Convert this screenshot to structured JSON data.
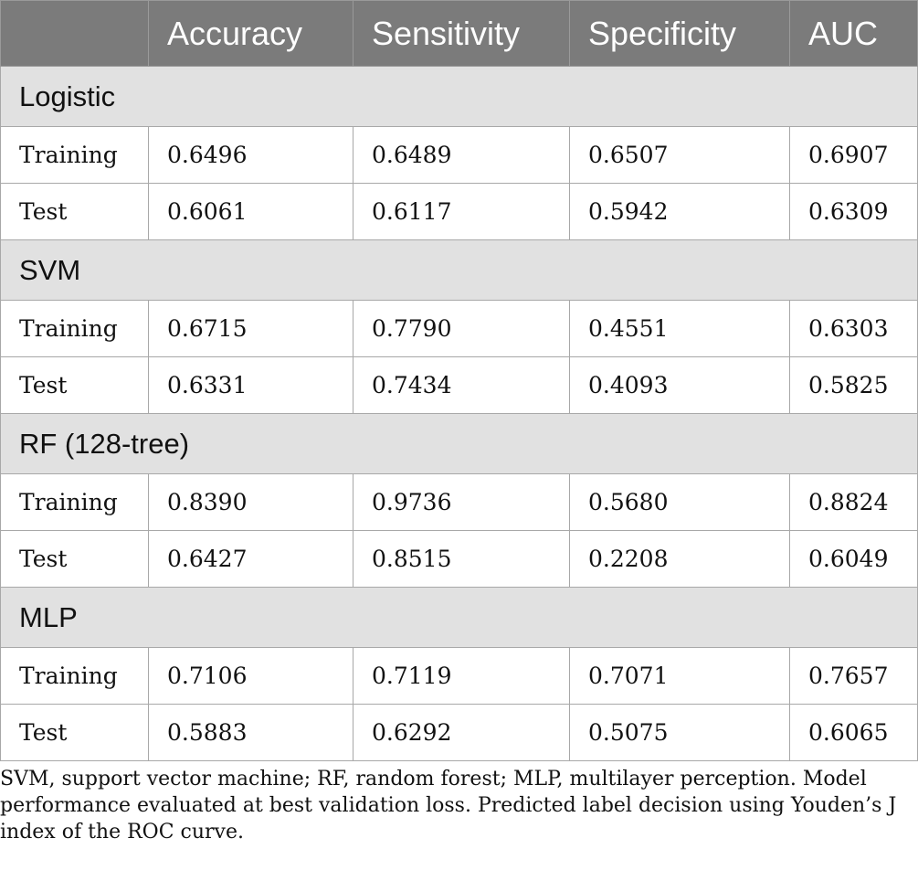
{
  "table": {
    "headers": [
      "",
      "Accuracy",
      "Sensitivity",
      "Specificity",
      "AUC"
    ],
    "groups": [
      {
        "name": "Logistic",
        "rows": [
          {
            "label": "Training",
            "values": [
              "0.6496",
              "0.6489",
              "0.6507",
              "0.6907"
            ]
          },
          {
            "label": "Test",
            "values": [
              "0.6061",
              "0.6117",
              "0.5942",
              "0.6309"
            ]
          }
        ]
      },
      {
        "name": "SVM",
        "rows": [
          {
            "label": "Training",
            "values": [
              "0.6715",
              "0.7790",
              "0.4551",
              "0.6303"
            ]
          },
          {
            "label": "Test",
            "values": [
              "0.6331",
              "0.7434",
              "0.4093",
              "0.5825"
            ]
          }
        ]
      },
      {
        "name": "RF (128-tree)",
        "rows": [
          {
            "label": "Training",
            "values": [
              "0.8390",
              "0.9736",
              "0.5680",
              "0.8824"
            ]
          },
          {
            "label": "Test",
            "values": [
              "0.6427",
              "0.8515",
              "0.2208",
              "0.6049"
            ]
          }
        ]
      },
      {
        "name": "MLP",
        "rows": [
          {
            "label": "Training",
            "values": [
              "0.7106",
              "0.7119",
              "0.7071",
              "0.7657"
            ]
          },
          {
            "label": "Test",
            "values": [
              "0.5883",
              "0.6292",
              "0.5075",
              "0.6065"
            ]
          }
        ]
      }
    ]
  },
  "footnote": "SVM, support vector machine; RF, random forest; MLP, multilayer perception. Model performance evaluated at best validation loss. Predicted label decision using Youden’s J index of the ROC curve.",
  "colors": {
    "header_bg": "#7b7b7b",
    "group_bg": "#e1e1e1",
    "border": "#a8a8a8"
  }
}
